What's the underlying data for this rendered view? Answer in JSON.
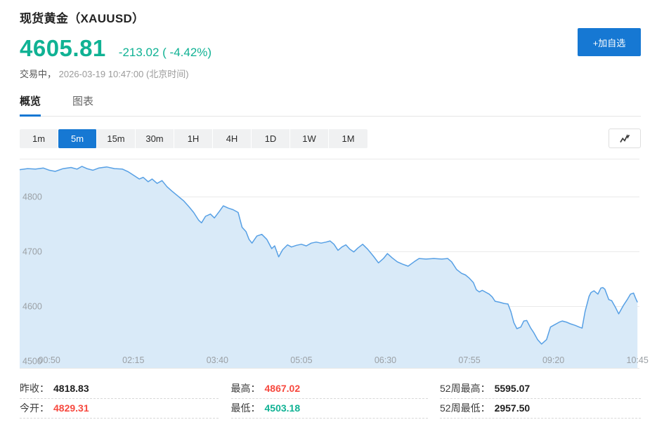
{
  "header": {
    "title": "现货黄金（XAUUSD）",
    "price": "4605.81",
    "change": "-213.02 ( -4.42%)",
    "status_label": "交易中，",
    "status_time": "2026-03-19 10:47:00 (北京时间)",
    "add_button": "+加自选"
  },
  "tabs": {
    "items": [
      "概览",
      "图表"
    ],
    "active": "概览"
  },
  "ranges": {
    "options": [
      "1m",
      "5m",
      "15m",
      "30m",
      "1H",
      "4H",
      "1D",
      "1W",
      "1M"
    ],
    "active": "5m"
  },
  "icons": {
    "chart_style_button": "trend-line-chart-icon"
  },
  "colors": {
    "accent_green": "#10b294",
    "accent_red": "#f7493f",
    "accent_blue": "#1678d3",
    "chart_line": "#57a0e5",
    "chart_fill": "#d9eaf8",
    "grid": "#e9e9e9",
    "axis_text": "#9ba0a5"
  },
  "stats": {
    "columns": [
      {
        "rows": [
          {
            "label": "昨收：",
            "value": "4818.83",
            "color": "dark"
          },
          {
            "label": "今开：",
            "value": "4829.31",
            "color": "red"
          }
        ]
      },
      {
        "rows": [
          {
            "label": "最高：",
            "value": "4867.02",
            "color": "red"
          },
          {
            "label": "最低：",
            "value": "4503.18",
            "color": "green"
          }
        ]
      },
      {
        "rows": [
          {
            "label": "52周最高：",
            "value": "5595.07",
            "color": "dark"
          },
          {
            "label": "52周最低：",
            "value": "2957.50",
            "color": "dark"
          }
        ]
      }
    ]
  },
  "chart_data": {
    "type": "area",
    "symbol": "XAUUSD",
    "interval": "5m",
    "x_unit": "minutes since 00:20 Beijing time",
    "x_domain": [
      0,
      627
    ],
    "y_domain": [
      4486,
      4869
    ],
    "grid": true,
    "y_ticks": [
      4800,
      4700,
      4600,
      4500
    ],
    "x_ticks": [
      {
        "t": 30,
        "label": "00:50"
      },
      {
        "t": 115,
        "label": "02:15"
      },
      {
        "t": 200,
        "label": "03:40"
      },
      {
        "t": 285,
        "label": "05:05"
      },
      {
        "t": 370,
        "label": "06:30"
      },
      {
        "t": 455,
        "label": "07:55"
      },
      {
        "t": 540,
        "label": "09:20"
      },
      {
        "t": 625,
        "label": "10:45"
      }
    ],
    "points": [
      [
        0,
        4849
      ],
      [
        8,
        4851
      ],
      [
        16,
        4850
      ],
      [
        24,
        4852
      ],
      [
        30,
        4848
      ],
      [
        36,
        4846
      ],
      [
        44,
        4851
      ],
      [
        52,
        4853
      ],
      [
        58,
        4850
      ],
      [
        63,
        4855
      ],
      [
        68,
        4851
      ],
      [
        74,
        4848
      ],
      [
        80,
        4852
      ],
      [
        88,
        4854
      ],
      [
        96,
        4851
      ],
      [
        104,
        4850
      ],
      [
        110,
        4845
      ],
      [
        116,
        4838
      ],
      [
        121,
        4832
      ],
      [
        125,
        4835
      ],
      [
        130,
        4827
      ],
      [
        134,
        4832
      ],
      [
        139,
        4824
      ],
      [
        144,
        4829
      ],
      [
        149,
        4818
      ],
      [
        154,
        4810
      ],
      [
        160,
        4801
      ],
      [
        166,
        4792
      ],
      [
        171,
        4782
      ],
      [
        176,
        4771
      ],
      [
        181,
        4757
      ],
      [
        184,
        4752
      ],
      [
        188,
        4764
      ],
      [
        193,
        4768
      ],
      [
        197,
        4761
      ],
      [
        202,
        4773
      ],
      [
        206,
        4783
      ],
      [
        211,
        4779
      ],
      [
        216,
        4776
      ],
      [
        221,
        4771
      ],
      [
        225,
        4744
      ],
      [
        229,
        4736
      ],
      [
        232,
        4722
      ],
      [
        235,
        4715
      ],
      [
        240,
        4728
      ],
      [
        245,
        4731
      ],
      [
        250,
        4722
      ],
      [
        255,
        4705
      ],
      [
        258,
        4710
      ],
      [
        262,
        4690
      ],
      [
        266,
        4703
      ],
      [
        271,
        4712
      ],
      [
        275,
        4708
      ],
      [
        280,
        4711
      ],
      [
        285,
        4713
      ],
      [
        290,
        4710
      ],
      [
        295,
        4715
      ],
      [
        300,
        4717
      ],
      [
        305,
        4715
      ],
      [
        310,
        4717
      ],
      [
        314,
        4719
      ],
      [
        318,
        4713
      ],
      [
        322,
        4702
      ],
      [
        326,
        4708
      ],
      [
        330,
        4712
      ],
      [
        334,
        4704
      ],
      [
        338,
        4699
      ],
      [
        342,
        4706
      ],
      [
        347,
        4713
      ],
      [
        352,
        4704
      ],
      [
        358,
        4691
      ],
      [
        363,
        4679
      ],
      [
        368,
        4687
      ],
      [
        372,
        4696
      ],
      [
        377,
        4688
      ],
      [
        382,
        4681
      ],
      [
        387,
        4677
      ],
      [
        393,
        4673
      ],
      [
        399,
        4681
      ],
      [
        404,
        4687
      ],
      [
        411,
        4686
      ],
      [
        419,
        4687
      ],
      [
        427,
        4686
      ],
      [
        433,
        4687
      ],
      [
        437,
        4681
      ],
      [
        442,
        4667
      ],
      [
        447,
        4660
      ],
      [
        451,
        4657
      ],
      [
        455,
        4651
      ],
      [
        459,
        4643
      ],
      [
        462,
        4630
      ],
      [
        465,
        4626
      ],
      [
        468,
        4629
      ],
      [
        472,
        4625
      ],
      [
        475,
        4622
      ],
      [
        478,
        4617
      ],
      [
        481,
        4609
      ],
      [
        486,
        4607
      ],
      [
        490,
        4605
      ],
      [
        494,
        4604
      ],
      [
        497,
        4590
      ],
      [
        500,
        4570
      ],
      [
        503,
        4559
      ],
      [
        507,
        4562
      ],
      [
        510,
        4573
      ],
      [
        513,
        4574
      ],
      [
        517,
        4560
      ],
      [
        520,
        4552
      ],
      [
        524,
        4539
      ],
      [
        528,
        4531
      ],
      [
        533,
        4539
      ],
      [
        537,
        4562
      ],
      [
        540,
        4565
      ],
      [
        546,
        4571
      ],
      [
        549,
        4573
      ],
      [
        553,
        4571
      ],
      [
        557,
        4568
      ],
      [
        562,
        4565
      ],
      [
        566,
        4562
      ],
      [
        569,
        4560
      ],
      [
        572,
        4590
      ],
      [
        576,
        4618
      ],
      [
        578,
        4625
      ],
      [
        581,
        4628
      ],
      [
        585,
        4622
      ],
      [
        588,
        4633
      ],
      [
        590,
        4634
      ],
      [
        592,
        4631
      ],
      [
        596,
        4612
      ],
      [
        599,
        4610
      ],
      [
        603,
        4597
      ],
      [
        606,
        4586
      ],
      [
        611,
        4602
      ],
      [
        615,
        4613
      ],
      [
        618,
        4622
      ],
      [
        621,
        4624
      ],
      [
        623,
        4615
      ],
      [
        625,
        4607
      ]
    ]
  }
}
